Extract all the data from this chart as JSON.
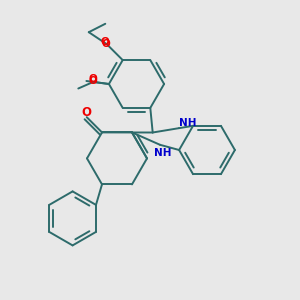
{
  "background_color": "#e8e8e8",
  "bond_color": "#2d6b6b",
  "n_color": "#0000cc",
  "o_color": "#ee0000",
  "figsize": [
    3.0,
    3.0
  ],
  "dpi": 100,
  "lw": 1.4,
  "font_size": 7.5,
  "xlim": [
    0,
    10
  ],
  "ylim": [
    0,
    10
  ]
}
